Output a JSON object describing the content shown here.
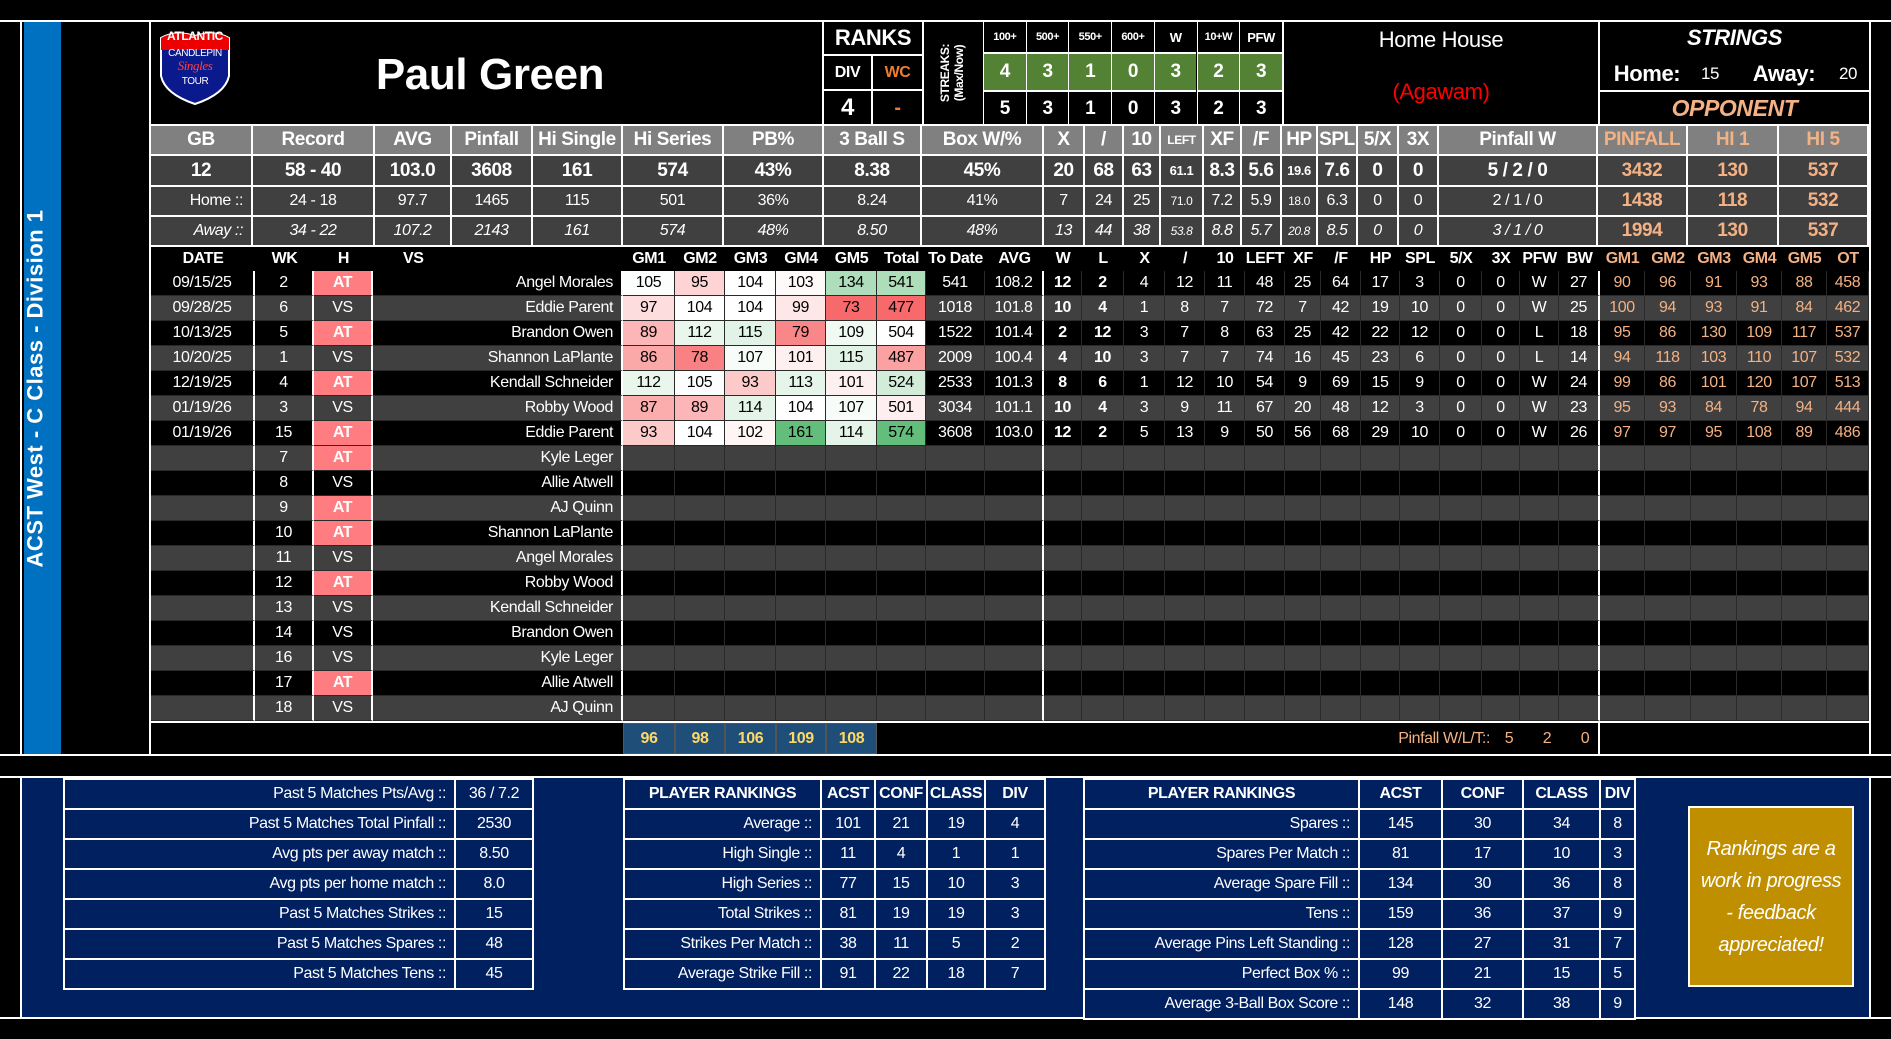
{
  "sidebar_label": "ACST West - C Class - Division 1",
  "logo": {
    "line1": "ATLANTIC",
    "line2": "CANDLEPIN",
    "line3": "Singles",
    "line4": "TOUR"
  },
  "player_name": "Paul Green",
  "ranks": {
    "title": "RANKS",
    "div_label": "DIV",
    "wc_label": "WC",
    "div": "4",
    "wc": "-"
  },
  "streaks": {
    "label": "STREAKS: (Max/Now)",
    "headers": [
      "100+",
      "500+",
      "550+",
      "600+",
      "W",
      "10+W",
      "PFW"
    ],
    "max": [
      "4",
      "3",
      "1",
      "0",
      "3",
      "2",
      "3"
    ],
    "now": [
      "5",
      "3",
      "1",
      "0",
      "3",
      "2",
      "3"
    ]
  },
  "home_house": {
    "label": "Home House",
    "name": "(Agawam)"
  },
  "strings": {
    "title": "STRINGS",
    "home_label": "Home:",
    "home": "15",
    "away_label": "Away:",
    "away": "20",
    "opponent_label": "OPPONENT"
  },
  "colors": {
    "sidebar": "#0070c0",
    "streak_green": "#548235",
    "opponent": "#f4b183",
    "away_badge": "#ff7c80",
    "bottom_bg": "#002060",
    "note_bg": "#bf8f00",
    "avg_cell": "#1f4e79",
    "avg_text": "#ffd966",
    "house_name": "#ff0000"
  },
  "summary": {
    "headers": [
      "GB",
      "Record",
      "AVG",
      "Pinfall",
      "Hi Single",
      "Hi Series",
      "PB%",
      "3 Ball S",
      "Box W/%",
      "X",
      "/",
      "10",
      "LEFT",
      "XF",
      "/F",
      "HP",
      "SPL",
      "5/X",
      "3X",
      "Pinfall W",
      "PINFALL",
      "HI 1",
      "HI 5"
    ],
    "rows": [
      [
        "12",
        "58 - 40",
        "103.0",
        "3608",
        "161",
        "574",
        "43%",
        "8.38",
        "45%",
        "20",
        "68",
        "63",
        "61.1",
        "8.3",
        "5.6",
        "19.6",
        "7.6",
        "0",
        "0",
        "5 / 2 / 0",
        "3432",
        "130",
        "537"
      ],
      [
        "Home ::",
        "24 - 18",
        "97.7",
        "1465",
        "115",
        "501",
        "36%",
        "8.24",
        "41%",
        "7",
        "24",
        "25",
        "71.0",
        "7.2",
        "5.9",
        "18.0",
        "6.3",
        "0",
        "0",
        "2 / 1 / 0",
        "1438",
        "118",
        "532"
      ],
      [
        "Away ::",
        "34 - 22",
        "107.2",
        "2143",
        "161",
        "574",
        "48%",
        "8.50",
        "48%",
        "13",
        "44",
        "38",
        "53.8",
        "8.8",
        "5.7",
        "20.8",
        "8.5",
        "0",
        "0",
        "3 / 1 / 0",
        "1994",
        "130",
        "537"
      ]
    ]
  },
  "games": {
    "headers": [
      "DATE",
      "WK",
      "H",
      "VS",
      "GM1",
      "GM2",
      "GM3",
      "GM4",
      "GM5",
      "Total",
      "To Date",
      "AVG",
      "W",
      "L",
      "X",
      "/",
      "10",
      "LEFT",
      "XF",
      "/F",
      "HP",
      "SPL",
      "5/X",
      "3X",
      "PFW",
      "BW",
      "GM1",
      "GM2",
      "GM3",
      "GM4",
      "GM5",
      "OT"
    ],
    "rows": [
      [
        "09/15/25",
        "2",
        "AT",
        "Angel Morales",
        "105",
        "95",
        "104",
        "103",
        "134",
        "541",
        "541",
        "108.2",
        "12",
        "2",
        "4",
        "12",
        "11",
        "48",
        "25",
        "64",
        "17",
        "3",
        "0",
        "0",
        "W",
        "27",
        "90",
        "96",
        "91",
        "93",
        "88",
        "458"
      ],
      [
        "09/28/25",
        "6",
        "VS",
        "Eddie Parent",
        "97",
        "104",
        "104",
        "99",
        "73",
        "477",
        "1018",
        "101.8",
        "10",
        "4",
        "1",
        "8",
        "7",
        "72",
        "7",
        "42",
        "19",
        "10",
        "0",
        "0",
        "W",
        "25",
        "100",
        "94",
        "93",
        "91",
        "84",
        "462"
      ],
      [
        "10/13/25",
        "5",
        "AT",
        "Brandon Owen",
        "89",
        "112",
        "115",
        "79",
        "109",
        "504",
        "1522",
        "101.4",
        "2",
        "12",
        "3",
        "7",
        "8",
        "63",
        "25",
        "42",
        "22",
        "12",
        "0",
        "0",
        "L",
        "18",
        "95",
        "86",
        "130",
        "109",
        "117",
        "537"
      ],
      [
        "10/20/25",
        "1",
        "VS",
        "Shannon LaPlante",
        "86",
        "78",
        "107",
        "101",
        "115",
        "487",
        "2009",
        "100.4",
        "4",
        "10",
        "3",
        "7",
        "7",
        "74",
        "16",
        "45",
        "23",
        "6",
        "0",
        "0",
        "L",
        "14",
        "94",
        "118",
        "103",
        "110",
        "107",
        "532"
      ],
      [
        "12/19/25",
        "4",
        "AT",
        "Kendall Schneider",
        "112",
        "105",
        "93",
        "113",
        "101",
        "524",
        "2533",
        "101.3",
        "8",
        "6",
        "1",
        "12",
        "10",
        "54",
        "9",
        "69",
        "15",
        "9",
        "0",
        "0",
        "W",
        "24",
        "99",
        "86",
        "101",
        "120",
        "107",
        "513"
      ],
      [
        "01/19/26",
        "3",
        "VS",
        "Robby Wood",
        "87",
        "89",
        "114",
        "104",
        "107",
        "501",
        "3034",
        "101.1",
        "10",
        "4",
        "3",
        "9",
        "11",
        "67",
        "20",
        "48",
        "12",
        "3",
        "0",
        "0",
        "W",
        "23",
        "95",
        "93",
        "84",
        "78",
        "94",
        "444"
      ],
      [
        "01/19/26",
        "15",
        "AT",
        "Eddie Parent",
        "93",
        "104",
        "102",
        "161",
        "114",
        "574",
        "3608",
        "103.0",
        "12",
        "2",
        "5",
        "13",
        "9",
        "50",
        "56",
        "68",
        "29",
        "10",
        "0",
        "0",
        "W",
        "26",
        "97",
        "97",
        "95",
        "108",
        "89",
        "486"
      ],
      [
        "",
        "7",
        "AT",
        "Kyle Leger"
      ],
      [
        "",
        "8",
        "VS",
        "Allie Atwell"
      ],
      [
        "",
        "9",
        "AT",
        "AJ Quinn"
      ],
      [
        "",
        "10",
        "AT",
        "Shannon LaPlante"
      ],
      [
        "",
        "11",
        "VS",
        "Angel Morales"
      ],
      [
        "",
        "12",
        "AT",
        "Robby Wood"
      ],
      [
        "",
        "13",
        "VS",
        "Kendall Schneider"
      ],
      [
        "",
        "14",
        "VS",
        "Brandon Owen"
      ],
      [
        "",
        "16",
        "VS",
        "Kyle Leger"
      ],
      [
        "",
        "17",
        "AT",
        "Allie Atwell"
      ],
      [
        "",
        "18",
        "VS",
        "AJ Quinn"
      ]
    ],
    "game_averages": [
      "96",
      "98",
      "106",
      "109",
      "108"
    ],
    "pinfall_wlt": {
      "label": "Pinfall W/L/T::",
      "w": "5",
      "l": "2",
      "t": "0"
    }
  },
  "past5": [
    {
      "label": "Past 5 Matches Pts/Avg ::",
      "value": "36 / 7.2"
    },
    {
      "label": "Past 5 Matches Total Pinfall ::",
      "value": "2530"
    },
    {
      "label": "Avg pts per away match ::",
      "value": "8.50"
    },
    {
      "label": "Avg pts per home match ::",
      "value": "8.0"
    },
    {
      "label": "Past 5 Matches Strikes ::",
      "value": "15"
    },
    {
      "label": "Past 5 Matches Spares ::",
      "value": "48"
    },
    {
      "label": "Past 5 Matches Tens ::",
      "value": "45"
    }
  ],
  "rankings1": {
    "headers": [
      "PLAYER RANKINGS",
      "ACST",
      "CONF",
      "CLASS",
      "DIV"
    ],
    "rows": [
      [
        "Average ::",
        "101",
        "21",
        "19",
        "4"
      ],
      [
        "High Single ::",
        "11",
        "4",
        "1",
        "1"
      ],
      [
        "High Series ::",
        "77",
        "15",
        "10",
        "3"
      ],
      [
        "Total Strikes ::",
        "81",
        "19",
        "19",
        "3"
      ],
      [
        "Strikes Per Match ::",
        "38",
        "11",
        "5",
        "2"
      ],
      [
        "Average Strike Fill ::",
        "91",
        "22",
        "18",
        "7"
      ]
    ]
  },
  "rankings2": {
    "headers": [
      "PLAYER RANKINGS",
      "ACST",
      "CONF",
      "CLASS",
      "DIV"
    ],
    "rows": [
      [
        "Spares ::",
        "145",
        "30",
        "34",
        "8"
      ],
      [
        "Spares Per Match ::",
        "81",
        "17",
        "10",
        "3"
      ],
      [
        "Average Spare Fill ::",
        "134",
        "30",
        "36",
        "8"
      ],
      [
        "Tens ::",
        "159",
        "36",
        "37",
        "9"
      ],
      [
        "Average Pins Left Standing ::",
        "128",
        "27",
        "31",
        "7"
      ],
      [
        "Perfect Box % ::",
        "99",
        "21",
        "15",
        "5"
      ],
      [
        "Average 3-Ball Box Score ::",
        "148",
        "32",
        "38",
        "9"
      ]
    ]
  },
  "note": "Rankings are a work in progress - feedback appreciated!"
}
